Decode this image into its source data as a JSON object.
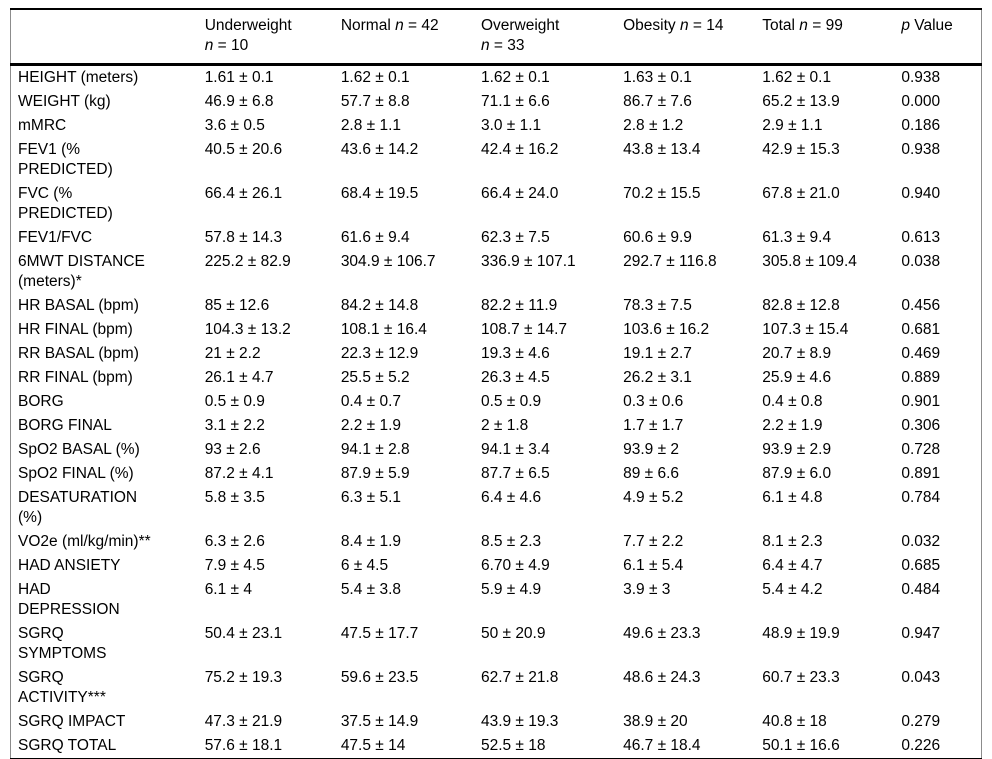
{
  "table": {
    "header": [
      {
        "segments": [
          {
            "t": "",
            "i": false
          }
        ]
      },
      {
        "segments": [
          {
            "t": "Underweight\n",
            "i": false
          },
          {
            "t": "n",
            "i": true
          },
          {
            "t": " = 10",
            "i": false
          }
        ]
      },
      {
        "segments": [
          {
            "t": "Normal ",
            "i": false
          },
          {
            "t": "n",
            "i": true
          },
          {
            "t": " = 42",
            "i": false
          }
        ]
      },
      {
        "segments": [
          {
            "t": "Overweight\n",
            "i": false
          },
          {
            "t": "n",
            "i": true
          },
          {
            "t": " = 33",
            "i": false
          }
        ]
      },
      {
        "segments": [
          {
            "t": "Obesity ",
            "i": false
          },
          {
            "t": "n",
            "i": true
          },
          {
            "t": " = 14",
            "i": false
          }
        ]
      },
      {
        "segments": [
          {
            "t": "Total ",
            "i": false
          },
          {
            "t": "n",
            "i": true
          },
          {
            "t": " = 99",
            "i": false
          }
        ]
      },
      {
        "segments": [
          {
            "t": "p",
            "i": true
          },
          {
            "t": " Value",
            "i": false
          }
        ]
      }
    ],
    "rows": [
      {
        "label": "HEIGHT (meters)",
        "values": [
          "1.61 ± 0.1",
          "1.62 ± 0.1",
          "1.62 ± 0.1",
          "1.63 ± 0.1",
          "1.62 ± 0.1",
          "0.938"
        ]
      },
      {
        "label": "WEIGHT (kg)",
        "values": [
          "46.9 ± 6.8",
          "57.7 ± 8.8",
          "71.1 ± 6.6",
          "86.7 ± 7.6",
          "65.2 ± 13.9",
          "0.000"
        ]
      },
      {
        "label": "mMRC",
        "values": [
          "3.6 ± 0.5",
          "2.8 ± 1.1",
          "3.0 ± 1.1",
          "2.8 ± 1.2",
          "2.9 ± 1.1",
          "0.186"
        ]
      },
      {
        "label": "FEV1 (%\nPREDICTED)",
        "values": [
          "40.5 ± 20.6",
          "43.6 ± 14.2",
          "42.4 ± 16.2",
          "43.8 ± 13.4",
          "42.9 ± 15.3",
          "0.938"
        ]
      },
      {
        "label": "FVC (%\nPREDICTED)",
        "values": [
          "66.4 ± 26.1",
          "68.4 ± 19.5",
          "66.4 ± 24.0",
          "70.2 ± 15.5",
          "67.8 ± 21.0",
          "0.940"
        ]
      },
      {
        "label": "FEV1/FVC",
        "values": [
          "57.8 ± 14.3",
          "61.6 ± 9.4",
          "62.3 ± 7.5",
          "60.6 ± 9.9",
          "61.3 ± 9.4",
          "0.613"
        ]
      },
      {
        "label": "6MWT DISTANCE\n(meters)*",
        "values": [
          "225.2 ± 82.9",
          "304.9 ± 106.7",
          "336.9 ± 107.1",
          "292.7 ± 116.8",
          "305.8 ± 109.4",
          "0.038"
        ]
      },
      {
        "label": "HR BASAL (bpm)",
        "values": [
          "85 ± 12.6",
          "84.2 ± 14.8",
          "82.2 ± 11.9",
          "78.3 ± 7.5",
          "82.8 ± 12.8",
          "0.456"
        ]
      },
      {
        "label": "HR FINAL (bpm)",
        "values": [
          "104.3 ± 13.2",
          "108.1 ± 16.4",
          "108.7 ± 14.7",
          "103.6 ± 16.2",
          "107.3 ± 15.4",
          "0.681"
        ]
      },
      {
        "label": "RR BASAL (bpm)",
        "values": [
          "21 ± 2.2",
          "22.3 ± 12.9",
          "19.3 ± 4.6",
          "19.1 ± 2.7",
          "20.7 ± 8.9",
          "0.469"
        ]
      },
      {
        "label": "RR FINAL (bpm)",
        "values": [
          "26.1 ± 4.7",
          "25.5 ± 5.2",
          "26.3 ± 4.5",
          "26.2 ± 3.1",
          "25.9 ± 4.6",
          "0.889"
        ]
      },
      {
        "label": "BORG",
        "values": [
          "0.5 ± 0.9",
          "0.4 ± 0.7",
          "0.5 ± 0.9",
          "0.3 ± 0.6",
          "0.4 ± 0.8",
          "0.901"
        ]
      },
      {
        "label": "BORG FINAL",
        "values": [
          "3.1 ± 2.2",
          "2.2 ± 1.9",
          "2 ± 1.8",
          "1.7 ± 1.7",
          "2.2 ± 1.9",
          "0.306"
        ]
      },
      {
        "label": "SpO2 BASAL (%)",
        "values": [
          "93 ± 2.6",
          "94.1 ± 2.8",
          "94.1 ± 3.4",
          "93.9 ± 2",
          "93.9 ± 2.9",
          "0.728"
        ]
      },
      {
        "label": "SpO2 FINAL (%)",
        "values": [
          "87.2 ± 4.1",
          "87.9 ± 5.9",
          "87.7 ± 6.5",
          "89 ± 6.6",
          "87.9 ± 6.0",
          "0.891"
        ]
      },
      {
        "label": "DESATURATION\n(%)",
        "values": [
          "5.8 ± 3.5",
          "6.3 ± 5.1",
          "6.4 ± 4.6",
          "4.9 ± 5.2",
          "6.1 ± 4.8",
          "0.784"
        ]
      },
      {
        "label": "VO2e (ml/kg/min)**",
        "values": [
          "6.3 ± 2.6",
          "8.4 ± 1.9",
          "8.5 ± 2.3",
          "7.7 ± 2.2",
          "8.1 ± 2.3",
          "0.032"
        ]
      },
      {
        "label": "HAD ANSIETY",
        "values": [
          "7.9 ± 4.5",
          "6 ± 4.5",
          "6.70 ± 4.9",
          "6.1 ± 5.4",
          "6.4 ± 4.7",
          "0.685"
        ]
      },
      {
        "label": "HAD\nDEPRESSION",
        "values": [
          "6.1 ± 4",
          "5.4 ± 3.8",
          "5.9 ± 4.9",
          "3.9 ± 3",
          "5.4 ± 4.2",
          "0.484"
        ]
      },
      {
        "label": "SGRQ\nSYMPTOMS",
        "values": [
          "50.4 ± 23.1",
          "47.5 ± 17.7",
          "50 ± 20.9",
          "49.6 ± 23.3",
          "48.9 ± 19.9",
          "0.947"
        ]
      },
      {
        "label": "SGRQ\nACTIVITY***",
        "values": [
          "75.2 ± 19.3",
          "59.6 ± 23.5",
          "62.7 ± 21.8",
          "48.6 ± 24.3",
          "60.7 ± 23.3",
          "0.043"
        ]
      },
      {
        "label": "SGRQ IMPACT",
        "values": [
          "47.3 ± 21.9",
          "37.5 ± 14.9",
          "43.9 ± 19.3",
          "38.9 ± 20",
          "40.8 ± 18",
          "0.279"
        ]
      },
      {
        "label": "SGRQ TOTAL",
        "values": [
          "57.6 ± 18.1",
          "47.5 ± 14",
          "52.5 ± 18",
          "46.7 ± 18.4",
          "50.1 ± 16.6",
          "0.226"
        ]
      }
    ]
  }
}
